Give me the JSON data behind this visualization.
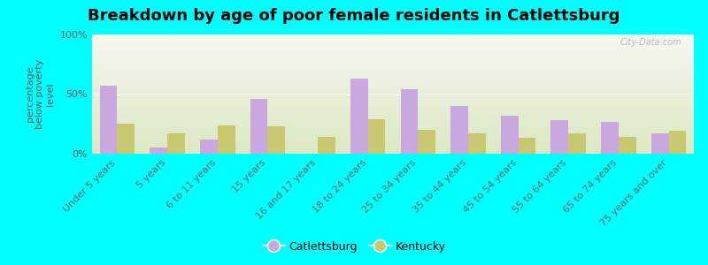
{
  "title": "Breakdown by age of poor female residents in Catlettsburg",
  "ylabel": "percentage\nbelow poverty\nlevel",
  "categories": [
    "Under 5 years",
    "5 years",
    "6 to 11 years",
    "15 years",
    "16 and 17 years",
    "18 to 24 years",
    "25 to 34 years",
    "35 to 44 years",
    "45 to 54 years",
    "55 to 64 years",
    "65 to 74 years",
    "75 years and over"
  ],
  "catlettsburg": [
    57,
    5,
    12,
    46,
    0,
    63,
    54,
    40,
    32,
    28,
    27,
    17
  ],
  "kentucky": [
    25,
    17,
    24,
    23,
    14,
    29,
    20,
    17,
    13,
    17,
    14,
    19
  ],
  "cat_color": "#c9a8e0",
  "ky_color": "#c8c870",
  "bg_color": "#00ffff",
  "ylim": [
    0,
    100
  ],
  "yticks": [
    0,
    50,
    100
  ],
  "ytick_labels": [
    "0%",
    "50%",
    "100%"
  ],
  "bar_width": 0.35,
  "title_fontsize": 13,
  "tick_fontsize": 8,
  "ylabel_fontsize": 8,
  "legend_labels": [
    "Catlettsburg",
    "Kentucky"
  ],
  "watermark": "City-Data.com"
}
